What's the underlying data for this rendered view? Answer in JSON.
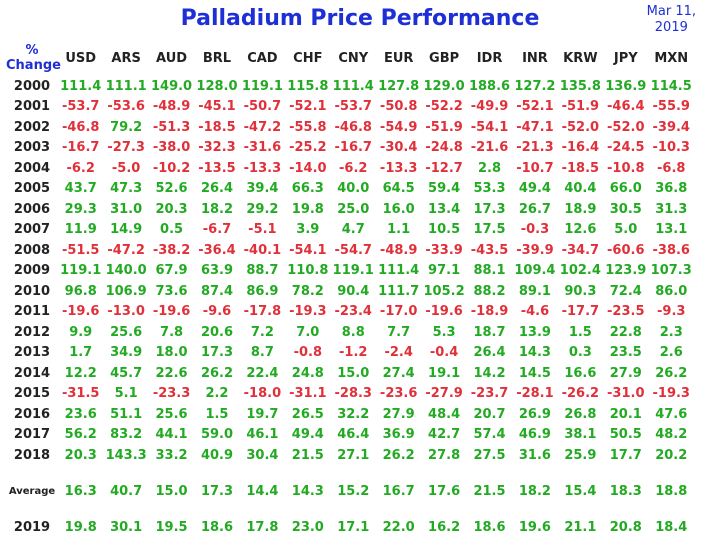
{
  "title": "Palladium Price Performance",
  "date_line1": "Mar 11,",
  "date_line2": "2019",
  "corner_line1": "%",
  "corner_line2": "Change",
  "colors": {
    "title": "#1f2fd6",
    "positive": "#22aa22",
    "negative": "#e0303a"
  },
  "currencies": [
    "USD",
    "ARS",
    "AUD",
    "BRL",
    "CAD",
    "CHF",
    "CNY",
    "EUR",
    "GBP",
    "IDR",
    "INR",
    "KRW",
    "JPY",
    "MXN"
  ],
  "rows": [
    {
      "year": "2000",
      "values": [
        "111.4",
        "111.1",
        "149.0",
        "128.0",
        "119.1",
        "115.8",
        "111.4",
        "127.8",
        "129.0",
        "188.6",
        "127.2",
        "135.8",
        "136.9",
        "114.5"
      ]
    },
    {
      "year": "2001",
      "values": [
        "-53.7",
        "-53.6",
        "-48.9",
        "-45.1",
        "-50.7",
        "-52.1",
        "-53.7",
        "-50.8",
        "-52.2",
        "-49.9",
        "-52.1",
        "-51.9",
        "-46.4",
        "-55.9"
      ]
    },
    {
      "year": "2002",
      "values": [
        "-46.8",
        "79.2",
        "-51.3",
        "-18.5",
        "-47.2",
        "-55.8",
        "-46.8",
        "-54.9",
        "-51.9",
        "-54.1",
        "-47.1",
        "-52.0",
        "-52.0",
        "-39.4"
      ]
    },
    {
      "year": "2003",
      "values": [
        "-16.7",
        "-27.3",
        "-38.0",
        "-32.3",
        "-31.6",
        "-25.2",
        "-16.7",
        "-30.4",
        "-24.8",
        "-21.6",
        "-21.3",
        "-16.4",
        "-24.5",
        "-10.3"
      ]
    },
    {
      "year": "2004",
      "values": [
        "-6.2",
        "-5.0",
        "-10.2",
        "-13.5",
        "-13.3",
        "-14.0",
        "-6.2",
        "-13.3",
        "-12.7",
        "2.8",
        "-10.7",
        "-18.5",
        "-10.8",
        "-6.8"
      ]
    },
    {
      "year": "2005",
      "values": [
        "43.7",
        "47.3",
        "52.6",
        "26.4",
        "39.4",
        "66.3",
        "40.0",
        "64.5",
        "59.4",
        "53.3",
        "49.4",
        "40.4",
        "66.0",
        "36.8"
      ]
    },
    {
      "year": "2006",
      "values": [
        "29.3",
        "31.0",
        "20.3",
        "18.2",
        "29.2",
        "19.8",
        "25.0",
        "16.0",
        "13.4",
        "17.3",
        "26.7",
        "18.9",
        "30.5",
        "31.3"
      ]
    },
    {
      "year": "2007",
      "values": [
        "11.9",
        "14.9",
        "0.5",
        "-6.7",
        "-5.1",
        "3.9",
        "4.7",
        "1.1",
        "10.5",
        "17.5",
        "-0.3",
        "12.6",
        "5.0",
        "13.1"
      ]
    },
    {
      "year": "2008",
      "values": [
        "-51.5",
        "-47.2",
        "-38.2",
        "-36.4",
        "-40.1",
        "-54.1",
        "-54.7",
        "-48.9",
        "-33.9",
        "-43.5",
        "-39.9",
        "-34.7",
        "-60.6",
        "-38.6"
      ]
    },
    {
      "year": "2009",
      "values": [
        "119.1",
        "140.0",
        "67.9",
        "63.9",
        "88.7",
        "110.8",
        "119.1",
        "111.4",
        "97.1",
        "88.1",
        "109.4",
        "102.4",
        "123.9",
        "107.3"
      ]
    },
    {
      "year": "2010",
      "values": [
        "96.8",
        "106.9",
        "73.6",
        "87.4",
        "86.9",
        "78.2",
        "90.4",
        "111.7",
        "105.2",
        "88.2",
        "89.1",
        "90.3",
        "72.4",
        "86.0"
      ]
    },
    {
      "year": "2011",
      "values": [
        "-19.6",
        "-13.0",
        "-19.6",
        "-9.6",
        "-17.8",
        "-19.3",
        "-23.4",
        "-17.0",
        "-19.6",
        "-18.9",
        "-4.6",
        "-17.7",
        "-23.5",
        "-9.3"
      ]
    },
    {
      "year": "2012",
      "values": [
        "9.9",
        "25.6",
        "7.8",
        "20.6",
        "7.2",
        "7.0",
        "8.8",
        "7.7",
        "5.3",
        "18.7",
        "13.9",
        "1.5",
        "22.8",
        "2.3"
      ]
    },
    {
      "year": "2013",
      "values": [
        "1.7",
        "34.9",
        "18.0",
        "17.3",
        "8.7",
        "-0.8",
        "-1.2",
        "-2.4",
        "-0.4",
        "26.4",
        "14.3",
        "0.3",
        "23.5",
        "2.6"
      ]
    },
    {
      "year": "2014",
      "values": [
        "12.2",
        "45.7",
        "22.6",
        "26.2",
        "22.4",
        "24.8",
        "15.0",
        "27.4",
        "19.1",
        "14.2",
        "14.5",
        "16.6",
        "27.9",
        "26.2"
      ]
    },
    {
      "year": "2015",
      "values": [
        "-31.5",
        "5.1",
        "-23.3",
        "2.2",
        "-18.0",
        "-31.1",
        "-28.3",
        "-23.6",
        "-27.9",
        "-23.7",
        "-28.1",
        "-26.2",
        "-31.0",
        "-19.3"
      ]
    },
    {
      "year": "2016",
      "values": [
        "23.6",
        "51.1",
        "25.6",
        "1.5",
        "19.7",
        "26.5",
        "32.2",
        "27.9",
        "48.4",
        "20.7",
        "26.9",
        "26.8",
        "20.1",
        "47.6"
      ]
    },
    {
      "year": "2017",
      "values": [
        "56.2",
        "83.2",
        "44.1",
        "59.0",
        "46.1",
        "49.4",
        "46.4",
        "36.9",
        "42.7",
        "57.4",
        "46.9",
        "38.1",
        "50.5",
        "48.2"
      ]
    },
    {
      "year": "2018",
      "values": [
        "20.3",
        "143.3",
        "33.2",
        "40.9",
        "30.4",
        "21.5",
        "27.1",
        "26.2",
        "27.8",
        "27.5",
        "31.6",
        "25.9",
        "17.7",
        "20.2"
      ]
    }
  ],
  "average": {
    "label": "Average",
    "values": [
      "16.3",
      "40.7",
      "15.0",
      "17.3",
      "14.4",
      "14.3",
      "15.2",
      "16.7",
      "17.6",
      "21.5",
      "18.2",
      "15.4",
      "18.3",
      "18.8"
    ]
  },
  "current": {
    "year": "2019",
    "values": [
      "19.8",
      "30.1",
      "19.5",
      "18.6",
      "17.8",
      "23.0",
      "17.1",
      "22.0",
      "16.2",
      "18.6",
      "19.6",
      "21.1",
      "20.8",
      "18.4"
    ]
  }
}
